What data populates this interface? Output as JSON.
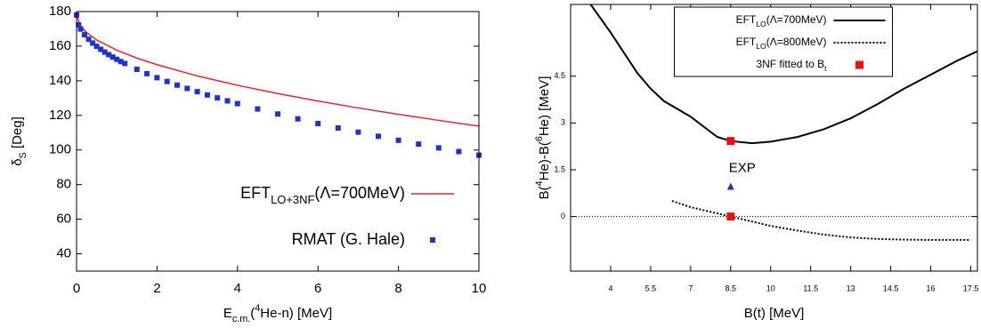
{
  "chart_data": [
    {
      "type": "line",
      "xlabel": [
        {
          "text": "E"
        },
        {
          "text": "c.m.",
          "script": "sub"
        },
        {
          "text": "("
        },
        {
          "text": "4",
          "script": "super"
        },
        {
          "text": "He-n) [MeV]"
        }
      ],
      "ylabel": [
        {
          "text": "δ"
        },
        {
          "text": "S",
          "script": "sub"
        },
        {
          "text": " [Deg]"
        }
      ],
      "xlim": [
        0,
        10
      ],
      "xticks": [
        0,
        2,
        4,
        6,
        8,
        10
      ],
      "ylim": [
        30,
        180
      ],
      "yticks": [
        40,
        60,
        80,
        100,
        120,
        140,
        160,
        180
      ],
      "legend": "lower right",
      "series": [
        {
          "name": [
            {
              "text": "EFT"
            },
            {
              "text": "LO+3NF",
              "script": "sub"
            },
            {
              "text": "(Λ=700MeV)"
            }
          ],
          "color": "#e8262a",
          "style": "line",
          "dash": "solid",
          "x": [
            0,
            0.1,
            0.25,
            0.5,
            1,
            1.5,
            2,
            3,
            4,
            5,
            6,
            7,
            8,
            9,
            10
          ],
          "values": [
            178,
            171.6,
            167.9,
            163.6,
            157.7,
            153.1,
            149.3,
            142.8,
            137.4,
            132.6,
            128.3,
            124.3,
            120.6,
            117.1,
            113.8
          ]
        },
        {
          "name": [
            {
              "text": "RMAT (G. Hale)"
            }
          ],
          "color": "#1f33cc",
          "style": "points",
          "x": [
            0,
            0.05,
            0.1,
            0.2,
            0.3,
            0.4,
            0.5,
            0.6,
            0.7,
            0.8,
            0.9,
            1.0,
            1.1,
            1.2,
            1.5,
            1.75,
            2.0,
            2.25,
            2.5,
            2.75,
            3.0,
            3.25,
            3.5,
            3.75,
            4.0,
            4.5,
            5.0,
            5.5,
            6.0,
            6.5,
            7.0,
            7.5,
            8.0,
            8.5,
            9.0,
            9.5,
            10.0
          ],
          "values": [
            178,
            172.3,
            169.9,
            166.6,
            164.0,
            161.8,
            159.9,
            158.2,
            156.6,
            155.1,
            153.7,
            152.4,
            151.1,
            150.0,
            146.6,
            144.1,
            141.8,
            139.6,
            137.5,
            135.6,
            133.7,
            131.8,
            130.1,
            128.4,
            126.8,
            123.7,
            120.8,
            118.0,
            115.3,
            112.7,
            110.3,
            107.9,
            105.6,
            103.4,
            101.2,
            99.1,
            97.0
          ]
        }
      ]
    },
    {
      "type": "line",
      "xlabel": [
        {
          "text": "B(t) [MeV]"
        }
      ],
      "ylabel": [
        {
          "text": "B("
        },
        {
          "text": "4",
          "script": "super"
        },
        {
          "text": "He)-B("
        },
        {
          "text": "6",
          "script": "super"
        },
        {
          "text": "He) [MeV]"
        }
      ],
      "xlim": [
        2.5,
        17.75
      ],
      "xticks": [
        4,
        5.5,
        7,
        8.5,
        10,
        11.5,
        13,
        14.5,
        16,
        17.5
      ],
      "ylim": [
        -1.75,
        6.8
      ],
      "yticks": [
        0,
        1.5,
        3,
        4.5
      ],
      "zero_line": true,
      "legend": "upper center",
      "legend_box": true,
      "series": [
        {
          "name": [
            {
              "text": "EFT"
            },
            {
              "text": "LO",
              "script": "sub"
            },
            {
              "text": "(Λ=700MeV)"
            }
          ],
          "color": "#000000",
          "style": "line",
          "dash": "solid",
          "x": [
            3.25,
            4,
            5,
            5.5,
            6,
            7,
            8,
            8.5,
            9.3,
            10,
            11,
            12,
            13,
            14,
            15,
            16,
            17,
            17.75
          ],
          "values": [
            6.8,
            5.9,
            4.6,
            4.1,
            3.7,
            3.2,
            2.55,
            2.42,
            2.35,
            2.4,
            2.55,
            2.8,
            3.15,
            3.6,
            4.1,
            4.55,
            5.0,
            5.3
          ]
        },
        {
          "name": [
            {
              "text": "EFT"
            },
            {
              "text": "LO",
              "script": "sub"
            },
            {
              "text": "(Λ=800MeV)"
            }
          ],
          "color": "#000000",
          "style": "line",
          "dash": "dotted",
          "x": [
            6.3,
            7,
            8,
            8.5,
            9,
            10,
            11,
            12,
            13,
            14,
            15,
            16,
            17.5
          ],
          "values": [
            0.5,
            0.3,
            0.1,
            0,
            -0.1,
            -0.3,
            -0.45,
            -0.58,
            -0.67,
            -0.72,
            -0.74,
            -0.75,
            -0.75
          ]
        },
        {
          "name": [
            {
              "text": "3NF fitted to B"
            },
            {
              "text": "t",
              "script": "sub"
            }
          ],
          "color": "#ee1111",
          "style": "points",
          "x": [
            8.5,
            8.5
          ],
          "values": [
            2.42,
            0
          ]
        }
      ],
      "annotations": [
        {
          "text": "EXP",
          "x": 8.5,
          "y": 0.97,
          "marker": "triangle",
          "color": "#1f33cc"
        }
      ]
    }
  ]
}
